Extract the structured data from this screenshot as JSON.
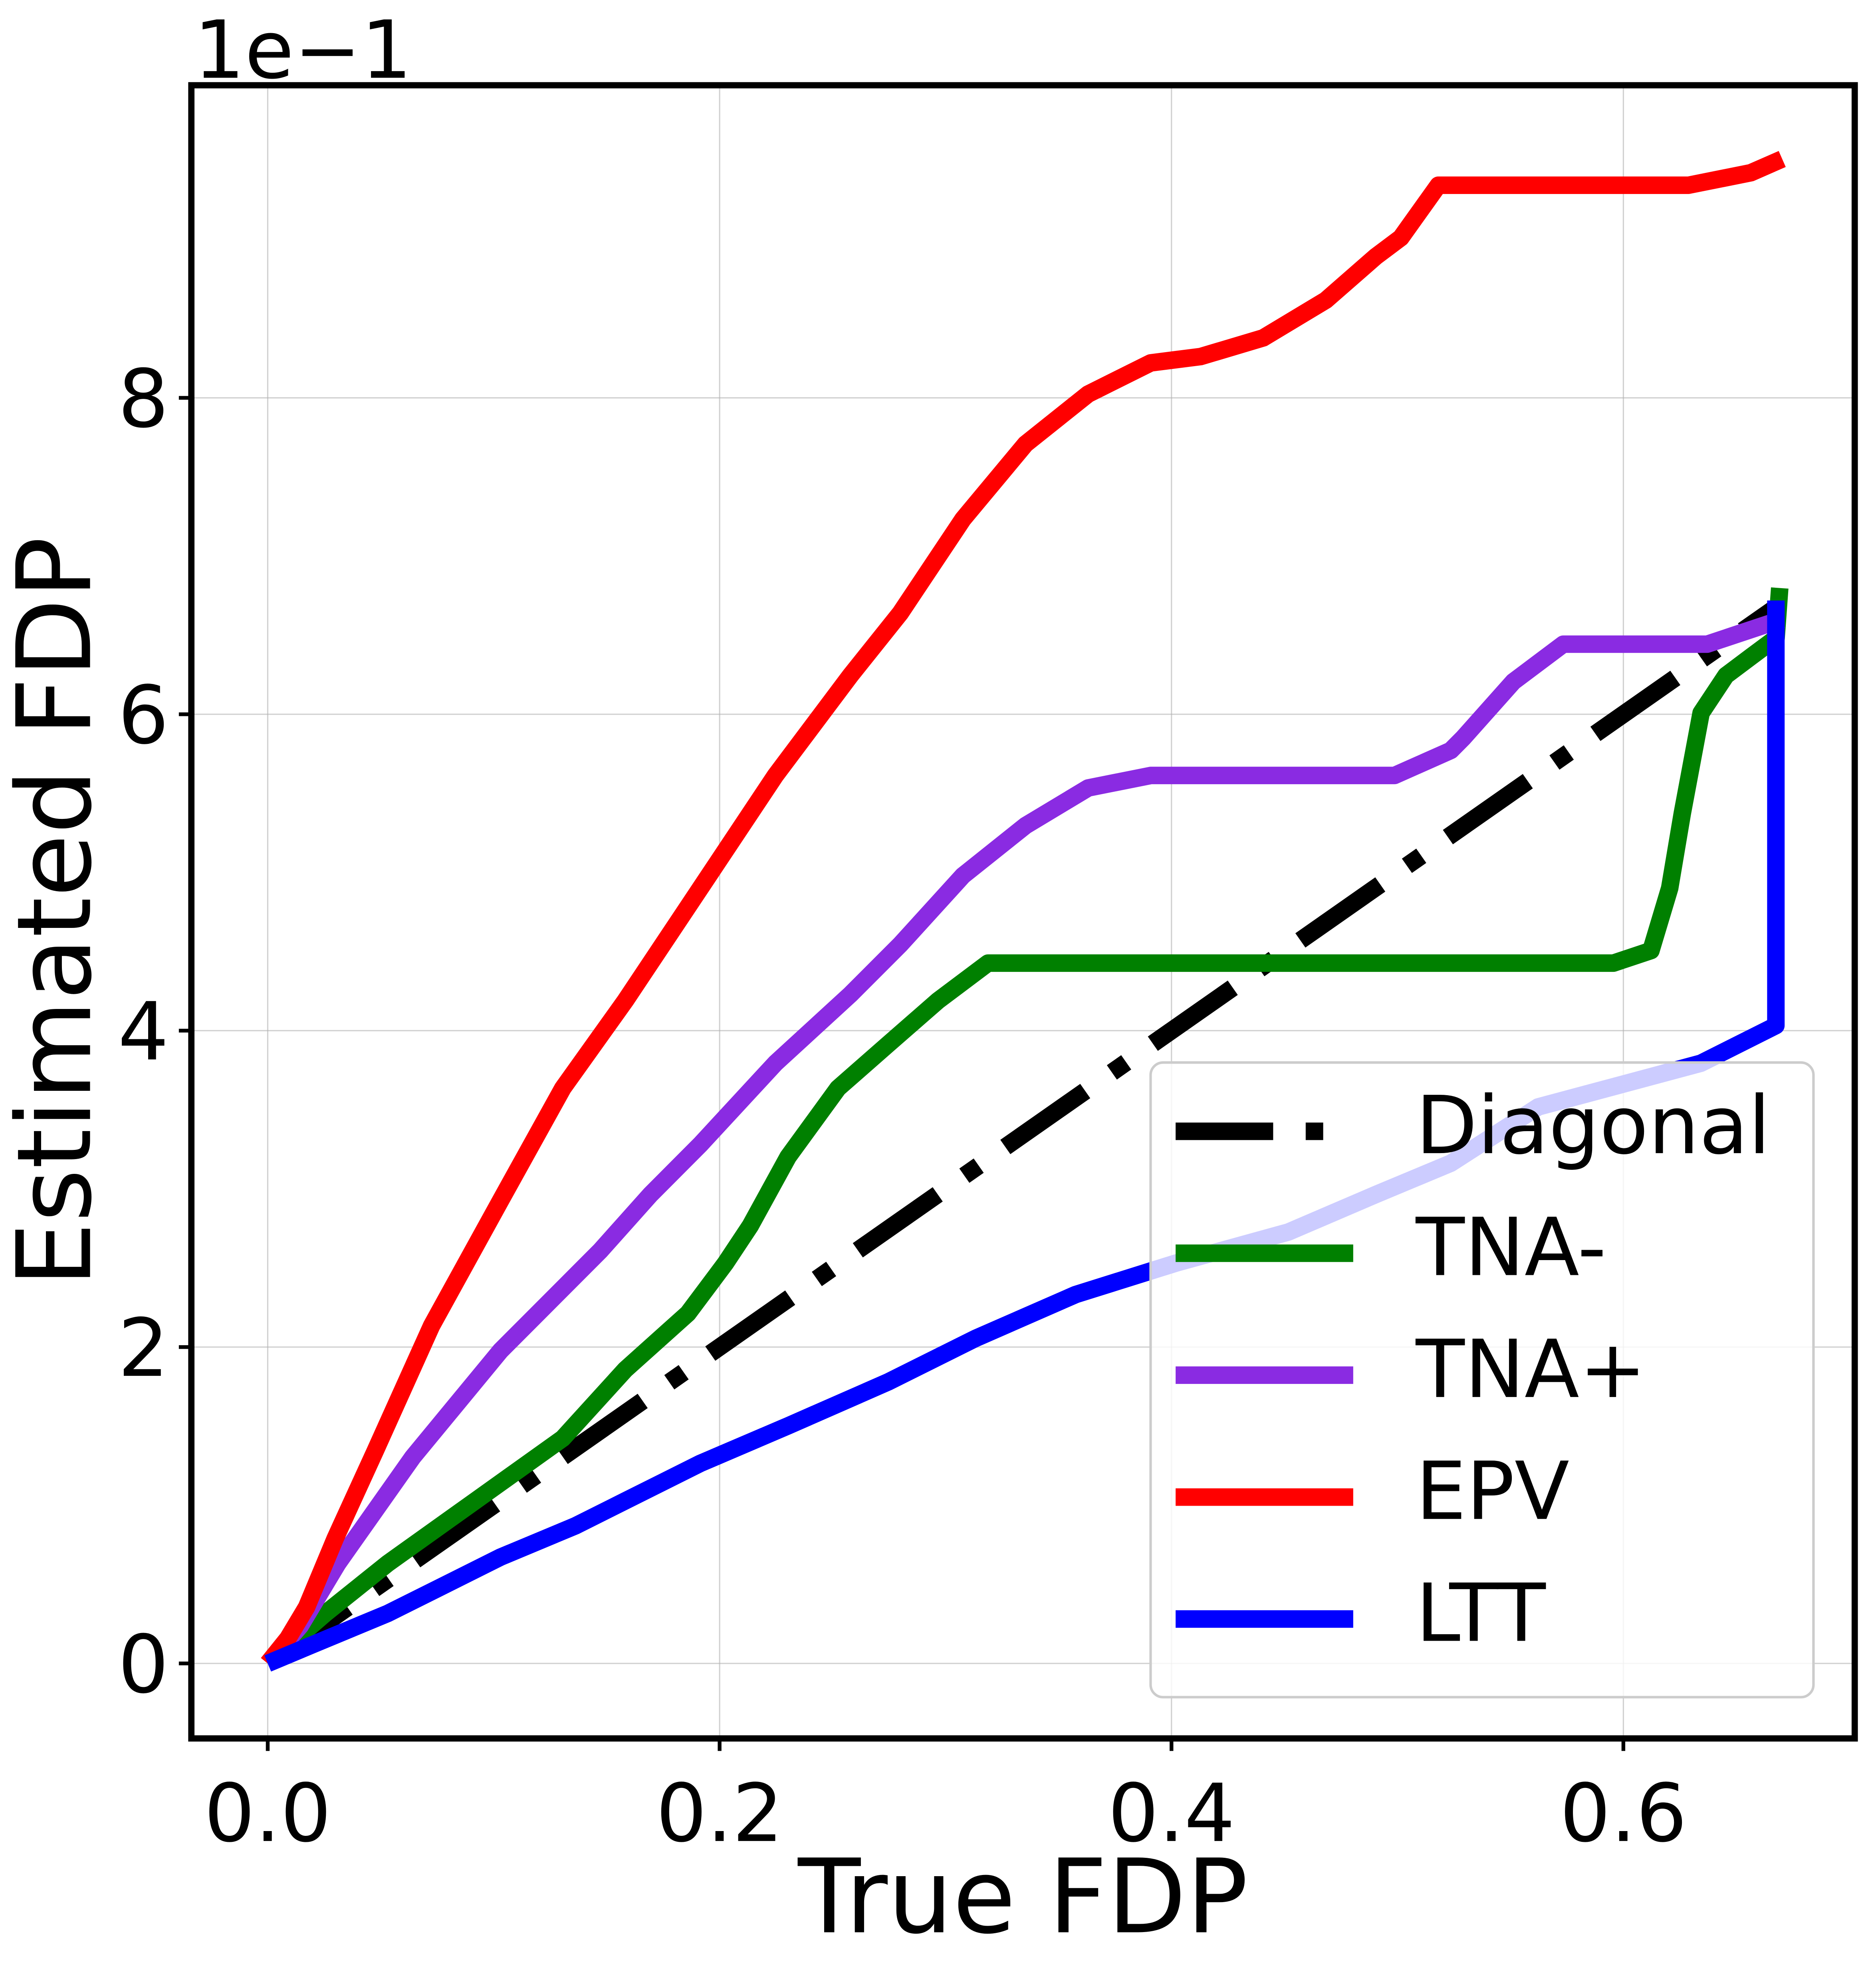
{
  "chart_data": {
    "type": "line",
    "xlabel": "True FDP",
    "ylabel": "Estimated FDP",
    "offset_text": "1e−1",
    "xlim": [
      -0.0338,
      0.7024
    ],
    "ylim": [
      -0.474,
      9.976
    ],
    "xticks": [
      {
        "value": 0,
        "label": "0.0"
      },
      0.2,
      0.4,
      0.6
    ],
    "yticks": [
      0,
      2,
      4,
      6,
      8
    ],
    "grid": true,
    "legend_loc": "lower right",
    "series": [
      {
        "name": "Diagonal",
        "color": "#000000",
        "linestyle": "dashdot",
        "x": [
          0,
          0.67
        ],
        "values": [
          0,
          6.7
        ]
      },
      {
        "name": "TNA-",
        "color": "#008000",
        "linestyle": "solid",
        "x": [
          0,
          0.0255,
          0.0531,
          0.0919,
          0.1306,
          0.1583,
          0.186,
          0.2026,
          0.2136,
          0.2303,
          0.2524,
          0.2745,
          0.2967,
          0.3188,
          0.5956,
          0.6122,
          0.6205,
          0.6261,
          0.6344,
          0.6454,
          0.6565,
          0.6676,
          0.6692
        ],
        "values": [
          0,
          0.316,
          0.632,
          1.028,
          1.423,
          1.858,
          2.213,
          2.53,
          2.767,
          3.202,
          3.636,
          3.913,
          4.19,
          4.427,
          4.427,
          4.506,
          4.901,
          5.375,
          6.008,
          6.245,
          6.364,
          6.482,
          6.798
        ]
      },
      {
        "name": "TNA+",
        "color": "#8a2be2",
        "linestyle": "solid",
        "x": [
          0,
          0.0144,
          0.031,
          0.0642,
          0.103,
          0.1472,
          0.1694,
          0.1915,
          0.2247,
          0.2579,
          0.28,
          0.3077,
          0.3354,
          0.3631,
          0.3908,
          0.4987,
          0.5236,
          0.5291,
          0.5513,
          0.5734,
          0.6371,
          0.6703
        ],
        "values": [
          0,
          0.237,
          0.632,
          1.304,
          1.976,
          2.609,
          2.964,
          3.281,
          3.794,
          4.229,
          4.545,
          4.98,
          5.296,
          5.534,
          5.613,
          5.613,
          5.771,
          5.85,
          6.206,
          6.443,
          6.443,
          6.601
        ]
      },
      {
        "name": "EPV",
        "color": "#ff0000",
        "linestyle": "solid",
        "x": [
          0,
          0.0089,
          0.0172,
          0.0299,
          0.0476,
          0.0725,
          0.103,
          0.1306,
          0.1583,
          0.1915,
          0.2247,
          0.2579,
          0.28,
          0.3077,
          0.3354,
          0.3631,
          0.3908,
          0.4129,
          0.4406,
          0.4683,
          0.4904,
          0.5015,
          0.5181,
          0.6288,
          0.6564,
          0.6703
        ],
        "values": [
          0,
          0.158,
          0.356,
          0.791,
          1.344,
          2.134,
          2.925,
          3.636,
          4.19,
          4.901,
          5.613,
          6.245,
          6.64,
          7.233,
          7.708,
          8.024,
          8.221,
          8.261,
          8.379,
          8.617,
          8.893,
          9.012,
          9.344,
          9.344,
          9.423,
          9.51
        ]
      },
      {
        "name": "LTT",
        "color": "#0000ff",
        "linestyle": "solid",
        "x": [
          0,
          0.0199,
          0.0531,
          0.0753,
          0.103,
          0.1362,
          0.1583,
          0.1915,
          0.2303,
          0.2745,
          0.3133,
          0.3576,
          0.4018,
          0.4517,
          0.4904,
          0.5236,
          0.5623,
          0.6343,
          0.6675,
          0.6675
        ],
        "values": [
          0,
          0.119,
          0.316,
          0.474,
          0.672,
          0.87,
          1.028,
          1.265,
          1.502,
          1.779,
          2.055,
          2.332,
          2.53,
          2.727,
          2.964,
          3.162,
          3.518,
          3.794,
          4.032,
          6.719
        ]
      }
    ]
  }
}
